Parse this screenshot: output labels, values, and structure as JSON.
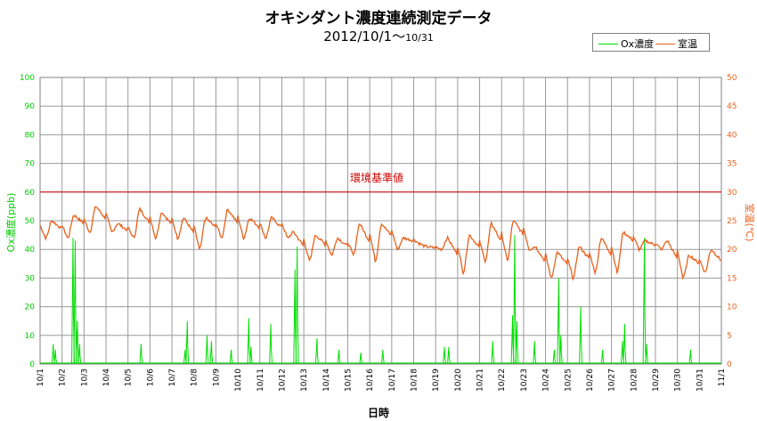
{
  "title": "オキシダント濃度連続測定データ",
  "subtitle_main": "2012/10/1～",
  "subtitle_small": "10/31",
  "legend": {
    "ox": {
      "label": "Ox濃度",
      "color": "#00dd00"
    },
    "temp": {
      "label": "室温",
      "color": "#e8601c"
    }
  },
  "threshold_label": "環境基準値",
  "chart_data": {
    "type": "line",
    "title": "オキシダント濃度連続測定データ",
    "xlabel": "日時",
    "ylabel_left": "Ox濃度(ppb)",
    "ylabel_right": "室温(℃)",
    "ylim_left": [
      0,
      100
    ],
    "ylim_right": [
      0,
      50
    ],
    "yticks_left": [
      0,
      10,
      20,
      30,
      40,
      50,
      60,
      70,
      80,
      90,
      100
    ],
    "yticks_right": [
      0,
      5,
      10,
      15,
      20,
      25,
      30,
      35,
      40,
      45,
      50
    ],
    "x_ticks": [
      "10/1",
      "10/2",
      "10/3",
      "10/4",
      "10/5",
      "10/6",
      "10/7",
      "10/8",
      "10/9",
      "10/10",
      "10/11",
      "10/12",
      "10/13",
      "10/14",
      "10/15",
      "10/16",
      "10/17",
      "10/18",
      "10/19",
      "10/20",
      "10/21",
      "10/22",
      "10/23",
      "10/24",
      "10/25",
      "10/26",
      "10/27",
      "10/28",
      "10/29",
      "10/30",
      "10/31",
      "11/1"
    ],
    "grid": true,
    "legend_position": "top-right",
    "threshold": {
      "label": "環境基準値",
      "axis": "left",
      "value": 60,
      "color": "#cc0000"
    },
    "series": [
      {
        "name": "Ox濃度",
        "axis": "left",
        "color": "#00dd00",
        "x_unit": "day",
        "peaks": [
          [
            0.6,
            7
          ],
          [
            0.7,
            5
          ],
          [
            1.5,
            44
          ],
          [
            1.6,
            43
          ],
          [
            1.7,
            15
          ],
          [
            1.8,
            7
          ],
          [
            4.6,
            7
          ],
          [
            6.6,
            5
          ],
          [
            6.7,
            15
          ],
          [
            7.6,
            10
          ],
          [
            7.8,
            8
          ],
          [
            8.7,
            5
          ],
          [
            9.5,
            16
          ],
          [
            9.6,
            6
          ],
          [
            10.5,
            14
          ],
          [
            11.6,
            33
          ],
          [
            11.7,
            41
          ],
          [
            12.6,
            9
          ],
          [
            13.6,
            5
          ],
          [
            14.6,
            4
          ],
          [
            15.6,
            5
          ],
          [
            18.4,
            6
          ],
          [
            18.6,
            6
          ],
          [
            20.6,
            8
          ],
          [
            21.5,
            17
          ],
          [
            21.6,
            45
          ],
          [
            21.7,
            15
          ],
          [
            22.5,
            8
          ],
          [
            23.4,
            5
          ],
          [
            23.6,
            30
          ],
          [
            23.7,
            10
          ],
          [
            24.6,
            20
          ],
          [
            25.6,
            5
          ],
          [
            26.5,
            8
          ],
          [
            26.6,
            14
          ],
          [
            27.5,
            44
          ],
          [
            27.6,
            7
          ],
          [
            29.6,
            5
          ]
        ]
      },
      {
        "name": "室温",
        "axis": "right",
        "color": "#e8601c",
        "x_unit": "day",
        "daily_min": [
          22,
          22,
          23,
          23,
          22,
          22,
          22,
          20,
          22,
          22,
          22,
          22,
          18,
          19,
          19,
          18,
          20,
          21,
          20,
          16,
          18,
          18,
          20,
          15,
          15,
          16,
          16,
          20,
          20,
          15,
          16
        ],
        "daily_max": [
          25,
          26,
          27.5,
          24.5,
          27,
          26.5,
          25.5,
          25.5,
          27,
          25.5,
          25.5,
          23,
          22.5,
          22,
          24.5,
          24.5,
          22,
          20.5,
          22,
          22.5,
          24.5,
          25,
          20.5,
          19.5,
          20.5,
          22,
          23,
          21.5,
          21.5,
          19,
          20
        ]
      }
    ]
  }
}
